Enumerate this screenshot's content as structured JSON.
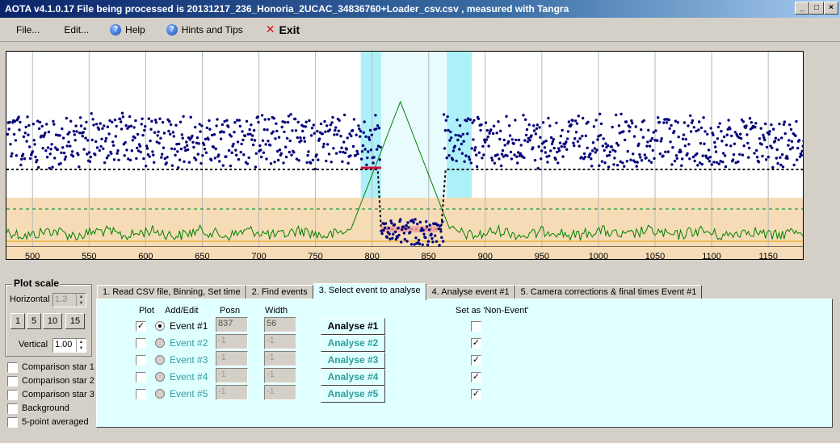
{
  "window": {
    "title": "AOTA v4.1.0.17   File being processed is  20131217_236_Honoria_2UCAC_34836760+Loader_csv.csv ,  measured with Tangra"
  },
  "menu": {
    "file": "File...",
    "edit": "Edit...",
    "help": "Help",
    "hints": "Hints and Tips",
    "exit": "Exit"
  },
  "chart_data": {
    "type": "scatter",
    "x_ticks": [
      "500",
      "550",
      "600",
      "650",
      "700",
      "750",
      "800",
      "850",
      "900",
      "950",
      "1000",
      "1050",
      "1100",
      "1150"
    ],
    "xlim": [
      477,
      1182
    ],
    "baseline_level": 0.5,
    "event_level": 0.2,
    "event_start": 808,
    "event_end": 865,
    "colors": {
      "points": "#00007a",
      "model_line": "#000000",
      "comparison": "#008000",
      "event_mark": "#d01040",
      "highlight": "#aef0f7",
      "background_band": "#f5dcb6"
    }
  },
  "plot_scale": {
    "title": "Plot scale",
    "horizontal_label": "Horizontal",
    "horizontal_value": "1.3",
    "buttons": [
      "1",
      "5",
      "10",
      "15"
    ],
    "vertical_label": "Vertical",
    "vertical_value": "1.00"
  },
  "options": [
    {
      "label": "Comparison star 1",
      "checked": false
    },
    {
      "label": "Comparison star 2",
      "checked": false
    },
    {
      "label": "Comparison star 3",
      "checked": false
    },
    {
      "label": "Background",
      "checked": false
    },
    {
      "label": "5-point averaged",
      "checked": false
    }
  ],
  "tabs": [
    "1.  Read CSV file, Binning, Set time",
    "2. Find events",
    "3. Select event to analyse",
    "4. Analyse event #1",
    "5. Camera corrections & final times Event #1"
  ],
  "event_table": {
    "headers": {
      "plot": "Plot",
      "add_edit": "Add/Edit",
      "posn": "Posn",
      "width": "Width",
      "non_event": "Set as 'Non-Event'"
    },
    "rows": [
      {
        "plot": true,
        "selected": true,
        "label": "Event #1",
        "posn": "837",
        "width": "56",
        "analyse": "Analyse #1",
        "non_event": false
      },
      {
        "plot": false,
        "selected": false,
        "label": "Event #2",
        "posn": "-1",
        "width": "-1",
        "analyse": "Analyse #2",
        "non_event": true
      },
      {
        "plot": false,
        "selected": false,
        "label": "Event #3",
        "posn": "-1",
        "width": "-1",
        "analyse": "Analyse #3",
        "non_event": true
      },
      {
        "plot": false,
        "selected": false,
        "label": "Event #4",
        "posn": "-1",
        "width": "-1",
        "analyse": "Analyse #4",
        "non_event": true
      },
      {
        "plot": false,
        "selected": false,
        "label": "Event #5",
        "posn": "-1",
        "width": "-1",
        "analyse": "Analyse #5",
        "non_event": true
      }
    ]
  }
}
